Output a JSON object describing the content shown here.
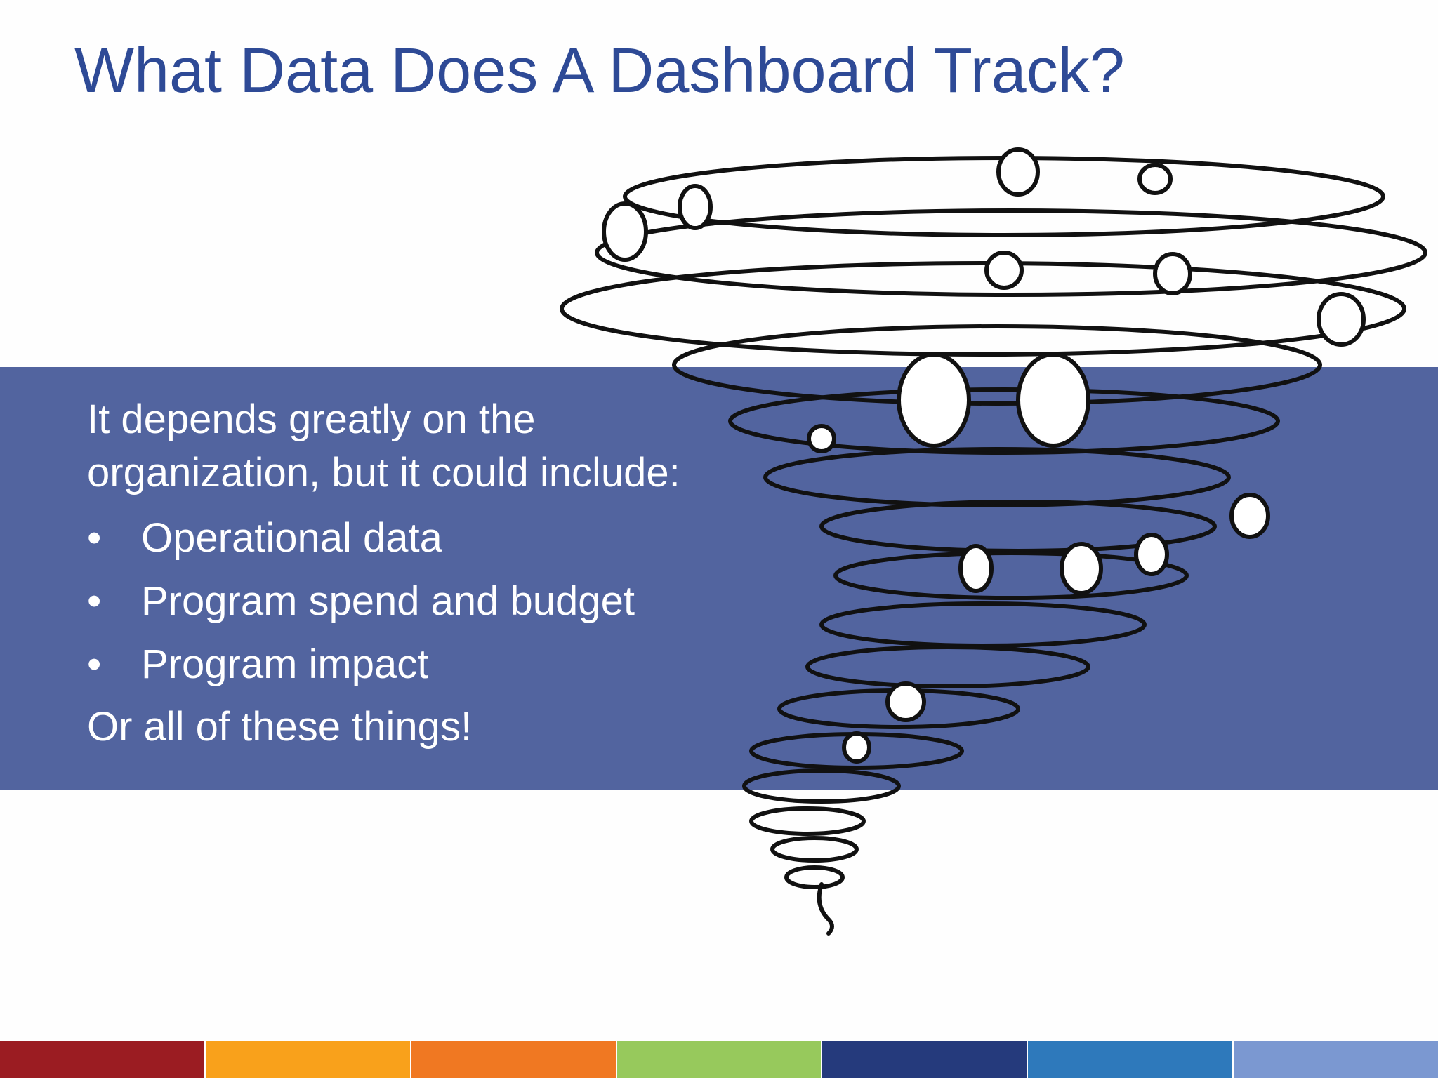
{
  "slide": {
    "title": "What Data Does A Dashboard Track?",
    "intro": "It depends greatly on the organization, but it could include:",
    "bullets": [
      "Operational data",
      "Program spend and budget",
      "Program impact"
    ],
    "closing": "Or all of these things!"
  }
}
